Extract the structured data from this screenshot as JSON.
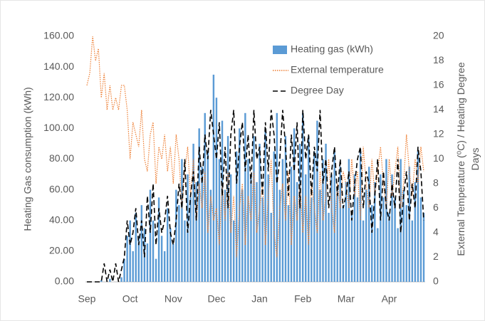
{
  "chart_data": {
    "type": "bar_line",
    "ylabel": "Heating Gas consumption (kWh)",
    "y2label": [
      "External Temperature (⁰C) / Heating Degree",
      "Days"
    ],
    "categories": [
      "Sep",
      null,
      null,
      null,
      null,
      null,
      null,
      null,
      null,
      null,
      null,
      null,
      null,
      null,
      null,
      "Oct",
      null,
      null,
      null,
      null,
      null,
      null,
      null,
      null,
      null,
      null,
      null,
      null,
      null,
      null,
      "Nov",
      null,
      null,
      null,
      null,
      null,
      null,
      null,
      null,
      null,
      null,
      null,
      null,
      null,
      null,
      "Dec",
      null,
      null,
      null,
      null,
      null,
      null,
      null,
      null,
      null,
      null,
      null,
      null,
      null,
      null,
      "Jan",
      null,
      null,
      null,
      null,
      null,
      null,
      null,
      null,
      null,
      null,
      null,
      null,
      null,
      null,
      "Feb",
      null,
      null,
      null,
      null,
      null,
      null,
      null,
      null,
      null,
      null,
      null,
      null,
      null,
      null,
      "Mar",
      null,
      null,
      null,
      null,
      null,
      null,
      null,
      null,
      null,
      null,
      null,
      null,
      null,
      null,
      "Apr",
      null,
      null,
      null,
      null,
      null,
      null,
      null,
      null,
      null,
      null,
      null,
      null
    ],
    "series": [
      {
        "name": "Heating gas (kWh)",
        "kind": "bar",
        "color": "#5b9bd5",
        "values": [
          0,
          0,
          0,
          0,
          0,
          1,
          0,
          0,
          2,
          0,
          0,
          0,
          3,
          15,
          30,
          40,
          20,
          45,
          30,
          50,
          35,
          25,
          60,
          40,
          15,
          55,
          30,
          20,
          48,
          35,
          25,
          60,
          50,
          80,
          40,
          70,
          55,
          90,
          65,
          100,
          75,
          110,
          85,
          60,
          135,
          120,
          80,
          105,
          60,
          95,
          70,
          40,
          85,
          100,
          60,
          110,
          80,
          70,
          95,
          65,
          90,
          55,
          100,
          70,
          45,
          85,
          110,
          60,
          80,
          95,
          50,
          75,
          100,
          65,
          90,
          110,
          70,
          95,
          55,
          85,
          105,
          60,
          80,
          90,
          45,
          70,
          85,
          60,
          75,
          50,
          65,
          80,
          45,
          70,
          55,
          85,
          40,
          60,
          75,
          50,
          65,
          35,
          70,
          55,
          80,
          45,
          70,
          55,
          35,
          80,
          60,
          50,
          75,
          40,
          65,
          85,
          55,
          45
        ]
      },
      {
        "name": "External temperature",
        "kind": "line",
        "axis": "y2",
        "color": "#ed7d31",
        "dash": "dotted",
        "values": [
          16,
          17,
          20,
          18,
          19,
          15,
          17,
          14,
          16,
          14,
          15,
          14,
          16,
          16,
          14,
          10,
          13,
          12,
          11,
          14,
          10,
          9,
          12,
          13,
          8,
          11,
          10,
          12,
          9,
          11,
          8,
          12,
          10,
          6,
          9,
          11,
          7,
          10,
          5,
          8,
          6,
          9,
          4,
          7,
          5,
          6,
          3,
          8,
          5,
          9,
          4,
          7,
          2,
          6,
          8,
          3,
          7,
          5,
          9,
          4,
          6,
          8,
          3,
          7,
          10,
          4,
          2,
          6,
          8,
          5,
          9,
          3,
          7,
          5,
          8,
          4,
          7,
          3,
          8,
          6,
          4,
          9,
          5,
          7,
          10,
          6,
          4,
          8,
          6,
          9,
          8,
          6,
          10,
          7,
          9,
          5,
          11,
          8,
          6,
          10,
          7,
          9,
          11,
          8,
          6,
          10,
          7,
          9,
          11,
          6,
          8,
          12,
          9,
          7,
          10,
          8,
          11,
          9
        ]
      },
      {
        "name": "Degree Day",
        "kind": "line",
        "axis": "y2",
        "color": "#000000",
        "dash": "dashed",
        "values": [
          0,
          0,
          0,
          0,
          0,
          0,
          1.5,
          0,
          1,
          0,
          1.5,
          0,
          1,
          2,
          5,
          3,
          4,
          6,
          3,
          5,
          2,
          7,
          4,
          8,
          3,
          6,
          4,
          5,
          7,
          4,
          3,
          5,
          8,
          6,
          10,
          4,
          7,
          9,
          5,
          11,
          8,
          12,
          10,
          14,
          12,
          10,
          13,
          7,
          11,
          6,
          12,
          14,
          8,
          11,
          13,
          9,
          12,
          8,
          14,
          10,
          11,
          7,
          13,
          9,
          14,
          12,
          8,
          10,
          14,
          11,
          7,
          12,
          9,
          13,
          6,
          14,
          10,
          12,
          7,
          11,
          9,
          14,
          8,
          10,
          6,
          9,
          11,
          7,
          10,
          6,
          7,
          9,
          5,
          8,
          10,
          11,
          6,
          9,
          8,
          4,
          7,
          10,
          5,
          9,
          6,
          5,
          8,
          6,
          10,
          4,
          7,
          9,
          5,
          8,
          6,
          11,
          9,
          5
        ]
      }
    ],
    "ylim": [
      0,
      160
    ],
    "yticks": [
      {
        "value": 0,
        "label": "0.00"
      },
      {
        "value": 20,
        "label": "20.00"
      },
      {
        "value": 40,
        "label": "40.00"
      },
      {
        "value": 60,
        "label": "60.00"
      },
      {
        "value": 80,
        "label": "80.00"
      },
      {
        "value": 100,
        "label": "100.00"
      },
      {
        "value": 120,
        "label": "120.00"
      },
      {
        "value": 140,
        "label": "140.00"
      },
      {
        "value": 160,
        "label": "160.00"
      }
    ],
    "y2lim": [
      0,
      20
    ],
    "y2ticks": [
      0,
      2,
      4,
      6,
      8,
      10,
      12,
      14,
      16,
      18,
      20
    ],
    "grid": false,
    "legend": "top-right"
  }
}
